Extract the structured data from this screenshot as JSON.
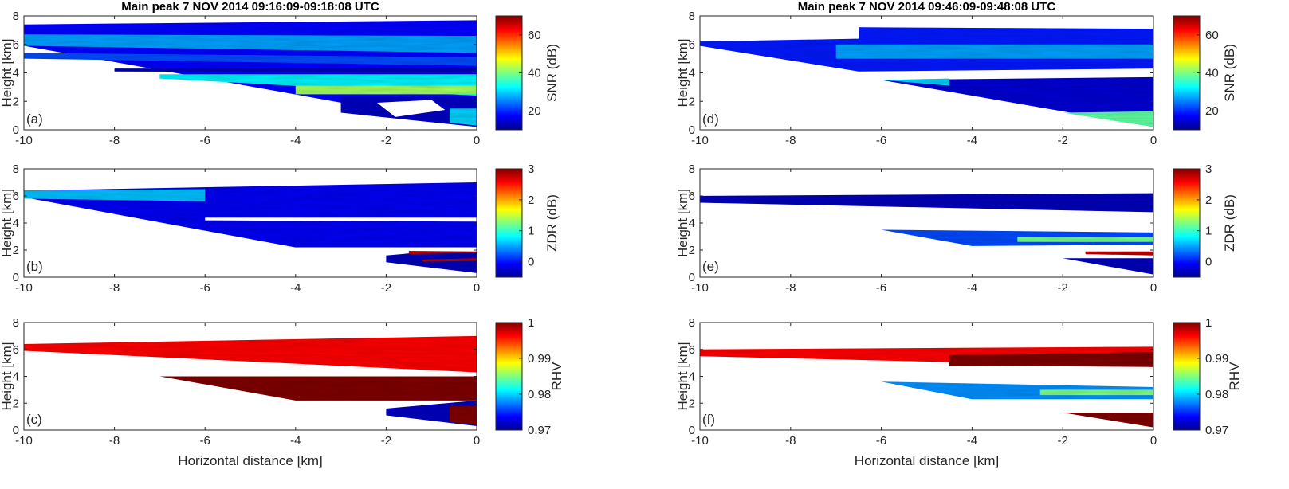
{
  "chart_data": {
    "type": "heatmap",
    "xlabel": "Horizontal distance [km]",
    "ylabel": "Height [km]",
    "xlim": [
      -10,
      0
    ],
    "ylim": [
      0,
      8
    ],
    "xticks": [
      "-10",
      "-8",
      "-6",
      "-4",
      "-2",
      "0"
    ],
    "yticks": [
      "0",
      "2",
      "4",
      "6",
      "8"
    ],
    "columns": [
      {
        "title": "Main peak 7 NOV 2014 09:16:09-09:18:08 UTC"
      },
      {
        "title": "Main peak 7 NOV 2014 09:46:09-09:48:08 UTC"
      }
    ],
    "colorbars": [
      {
        "label": "SNR (dB)",
        "range": [
          10,
          70
        ],
        "ticks": [
          "20",
          "40",
          "60"
        ],
        "tick_values": [
          20,
          40,
          60
        ]
      },
      {
        "label": "ZDR (dB)",
        "range": [
          -0.5,
          3
        ],
        "ticks": [
          "0",
          "1",
          "2",
          "3"
        ],
        "tick_values": [
          0,
          1,
          2,
          3
        ]
      },
      {
        "label": "RHV",
        "range": [
          0.97,
          1
        ],
        "ticks": [
          "0.97",
          "0.98",
          "0.99",
          "1"
        ],
        "tick_values": [
          0.97,
          0.98,
          0.99,
          1
        ]
      }
    ],
    "panels": [
      {
        "label": "(a)",
        "col": 0,
        "row": 0,
        "regions": [
          {
            "poly": [
              [
                -10,
                7.4
              ],
              [
                0,
                7.7
              ],
              [
                0,
                0.2
              ],
              [
                -10,
                5.9
              ]
            ],
            "value": 18
          },
          {
            "poly": [
              [
                -10,
                6.7
              ],
              [
                0,
                6.6
              ],
              [
                0,
                5.4
              ],
              [
                -10,
                5.9
              ]
            ],
            "value": 27
          },
          {
            "poly": [
              [
                -10,
                5.4
              ],
              [
                0,
                5.1
              ],
              [
                0,
                4.5
              ],
              [
                -10,
                5.0
              ]
            ],
            "value": 22
          },
          {
            "poly": [
              [
                -8,
                4.3
              ],
              [
                0,
                4.3
              ],
              [
                0,
                4.0
              ],
              [
                -8,
                4.1
              ]
            ],
            "value": 13
          },
          {
            "poly": [
              [
                -7,
                3.9
              ],
              [
                0,
                3.9
              ],
              [
                0,
                2.4
              ],
              [
                -7,
                3.6
              ]
            ],
            "value": 32
          },
          {
            "poly": [
              [
                -4,
                3.1
              ],
              [
                0,
                3.1
              ],
              [
                0,
                2.5
              ],
              [
                -4,
                2.5
              ]
            ],
            "value": 42
          },
          {
            "poly": [
              [
                -3,
                2.3
              ],
              [
                0,
                2.3
              ],
              [
                0,
                0.2
              ],
              [
                -3,
                1.2
              ]
            ],
            "value": 14
          },
          {
            "poly": [
              [
                -0.6,
                1.5
              ],
              [
                0,
                1.5
              ],
              [
                0,
                0.3
              ],
              [
                -0.6,
                0.5
              ]
            ],
            "value": 30
          }
        ],
        "gaps": [
          [
            [
              -2.2,
              1.9
            ],
            [
              -1,
              2.1
            ],
            [
              -0.7,
              1.4
            ],
            [
              -1.8,
              0.9
            ]
          ]
        ]
      },
      {
        "label": "(b)",
        "col": 0,
        "row": 1,
        "regions": [
          {
            "poly": [
              [
                -10,
                6.4
              ],
              [
                0,
                7.0
              ],
              [
                0,
                2.2
              ],
              [
                -4,
                2.2
              ],
              [
                -10,
                5.9
              ]
            ],
            "value": -0.1
          },
          {
            "poly": [
              [
                -10,
                6.4
              ],
              [
                -6,
                6.5
              ],
              [
                -6,
                5.6
              ],
              [
                -10,
                5.8
              ]
            ],
            "value": 0.6
          },
          {
            "poly": [
              [
                -2,
                1.6
              ],
              [
                0,
                2.2
              ],
              [
                0,
                0.3
              ],
              [
                -2,
                1.1
              ]
            ],
            "value": -0.3
          },
          {
            "poly": [
              [
                -1.5,
                2.0
              ],
              [
                0,
                2.1
              ],
              [
                0,
                1.8
              ],
              [
                -1.5,
                1.7
              ]
            ],
            "value": 2.8
          },
          {
            "poly": [
              [
                -1.2,
                1.3
              ],
              [
                0,
                1.4
              ],
              [
                0,
                1.2
              ],
              [
                -1.2,
                1.15
              ]
            ],
            "value": 2.8
          }
        ],
        "gaps": [
          [
            [
              -6,
              4.4
            ],
            [
              0,
              4.4
            ],
            [
              0,
              4.1
            ],
            [
              -6,
              4.2
            ]
          ],
          [
            [
              -4,
              2.2
            ],
            [
              0,
              2.2
            ],
            [
              0,
              1.9
            ],
            [
              -4,
              2.0
            ]
          ]
        ]
      },
      {
        "label": "(c)",
        "col": 0,
        "row": 2,
        "regions": [
          {
            "poly": [
              [
                -10,
                6.4
              ],
              [
                0,
                7.0
              ],
              [
                0,
                4.3
              ],
              [
                -10,
                5.9
              ]
            ],
            "value": 0.996
          },
          {
            "poly": [
              [
                -7,
                4.0
              ],
              [
                0,
                4.0
              ],
              [
                0,
                2.2
              ],
              [
                -4,
                2.2
              ]
            ],
            "value": 1.0
          },
          {
            "poly": [
              [
                -2,
                1.6
              ],
              [
                0,
                2.2
              ],
              [
                0,
                0.3
              ],
              [
                -2,
                1.1
              ]
            ],
            "value": 0.972
          },
          {
            "poly": [
              [
                -0.6,
                1.8
              ],
              [
                0,
                1.8
              ],
              [
                0,
                0.4
              ],
              [
                -0.6,
                0.6
              ]
            ],
            "value": 1.0
          }
        ],
        "gaps": []
      },
      {
        "label": "(d)",
        "col": 1,
        "row": 0,
        "regions": [
          {
            "poly": [
              [
                -10,
                6.2
              ],
              [
                -6.5,
                6.4
              ],
              [
                -6.5,
                7.2
              ],
              [
                0,
                7.1
              ],
              [
                0,
                4.3
              ],
              [
                -6.5,
                4.1
              ],
              [
                -10,
                5.9
              ]
            ],
            "value": 19
          },
          {
            "poly": [
              [
                -7,
                6.0
              ],
              [
                0,
                6.0
              ],
              [
                0,
                5.0
              ],
              [
                -7,
                5.0
              ]
            ],
            "value": 27
          },
          {
            "poly": [
              [
                -6,
                3.5
              ],
              [
                0,
                3.7
              ],
              [
                0,
                0.2
              ]
            ],
            "value": 15
          },
          {
            "poly": [
              [
                -6,
                3.5
              ],
              [
                -4.5,
                3.6
              ],
              [
                -4.5,
                3.1
              ]
            ],
            "value": 30
          },
          {
            "poly": [
              [
                -2,
                1.2
              ],
              [
                0,
                1.3
              ],
              [
                0,
                0.2
              ]
            ],
            "value": 38
          }
        ],
        "gaps": []
      },
      {
        "label": "(e)",
        "col": 1,
        "row": 1,
        "regions": [
          {
            "poly": [
              [
                -10,
                6.0
              ],
              [
                0,
                6.2
              ],
              [
                0,
                4.8
              ],
              [
                -10,
                5.5
              ]
            ],
            "value": -0.3
          },
          {
            "poly": [
              [
                -6,
                3.5
              ],
              [
                0,
                3.3
              ],
              [
                0,
                2.4
              ],
              [
                -4,
                2.3
              ]
            ],
            "value": 0.2
          },
          {
            "poly": [
              [
                -3,
                3.0
              ],
              [
                0,
                3.0
              ],
              [
                0,
                2.6
              ],
              [
                -3,
                2.6
              ]
            ],
            "value": 1.2
          },
          {
            "poly": [
              [
                -2,
                1.4
              ],
              [
                0,
                1.4
              ],
              [
                0,
                0.2
              ]
            ],
            "value": -0.3
          },
          {
            "poly": [
              [
                -1.5,
                1.9
              ],
              [
                0,
                1.9
              ],
              [
                0,
                1.6
              ],
              [
                -1.5,
                1.7
              ]
            ],
            "value": 2.8
          }
        ],
        "gaps": []
      },
      {
        "label": "(f)",
        "col": 1,
        "row": 2,
        "regions": [
          {
            "poly": [
              [
                -10,
                6.0
              ],
              [
                0,
                6.2
              ],
              [
                0,
                4.7
              ],
              [
                -10,
                5.5
              ]
            ],
            "value": 0.996
          },
          {
            "poly": [
              [
                -4.5,
                5.6
              ],
              [
                0,
                5.8
              ],
              [
                0,
                4.7
              ],
              [
                -4.5,
                4.8
              ]
            ],
            "value": 1.0
          },
          {
            "poly": [
              [
                -6,
                3.6
              ],
              [
                0,
                3.2
              ],
              [
                0,
                2.3
              ],
              [
                -4,
                2.3
              ]
            ],
            "value": 0.978
          },
          {
            "poly": [
              [
                -2.5,
                3.0
              ],
              [
                0,
                3.0
              ],
              [
                0,
                2.6
              ],
              [
                -2.5,
                2.6
              ]
            ],
            "value": 0.985
          },
          {
            "poly": [
              [
                -2,
                1.3
              ],
              [
                0,
                1.3
              ],
              [
                0,
                0.2
              ]
            ],
            "value": 1.0
          }
        ],
        "gaps": []
      }
    ]
  }
}
